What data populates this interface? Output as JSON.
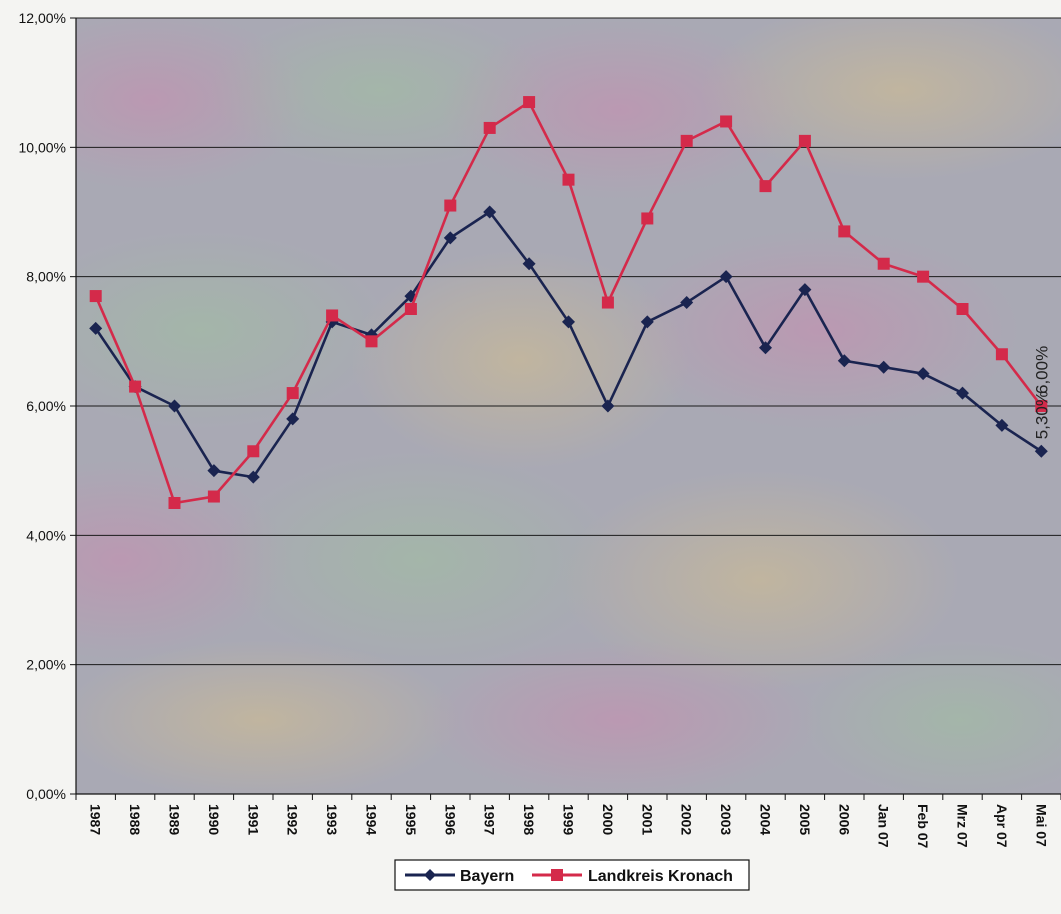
{
  "chart_data": {
    "type": "line",
    "title": "",
    "xlabel": "",
    "ylabel": "",
    "categories": [
      "1987",
      "1988",
      "1989",
      "1990",
      "1991",
      "1992",
      "1993",
      "1994",
      "1995",
      "1996",
      "1997",
      "1998",
      "1999",
      "2000",
      "2001",
      "2002",
      "2003",
      "2004",
      "2005",
      "2006",
      "Jan 07",
      "Feb 07",
      "Mrz 07",
      "Apr 07",
      "Mai 07"
    ],
    "ylim": [
      0,
      12
    ],
    "y_ticks": [
      0,
      2,
      4,
      6,
      8,
      10,
      12
    ],
    "y_tick_labels": [
      "0,00%",
      "2,00%",
      "4,00%",
      "6,00%",
      "8,00%",
      "10,00%",
      "12,00%"
    ],
    "grid": true,
    "legend_position": "bottom",
    "series": [
      {
        "name": "Bayern",
        "color": "#1a2450",
        "marker": "diamond",
        "values": [
          7.2,
          6.3,
          6.0,
          5.0,
          4.9,
          5.8,
          7.3,
          7.1,
          7.7,
          8.6,
          9.0,
          8.2,
          7.3,
          6.0,
          7.3,
          7.6,
          8.0,
          6.9,
          7.8,
          6.7,
          6.6,
          6.5,
          6.2,
          5.7,
          5.3
        ],
        "end_label": "5,30%"
      },
      {
        "name": "Landkreis Kronach",
        "color": "#d42a4a",
        "marker": "square",
        "values": [
          7.7,
          6.3,
          4.5,
          4.6,
          5.3,
          6.2,
          7.4,
          7.0,
          7.5,
          9.1,
          10.3,
          10.7,
          9.5,
          7.6,
          8.9,
          10.1,
          10.4,
          9.4,
          10.1,
          8.7,
          8.2,
          8.0,
          7.5,
          6.8,
          6.0
        ],
        "end_label": "6,00%"
      }
    ]
  }
}
